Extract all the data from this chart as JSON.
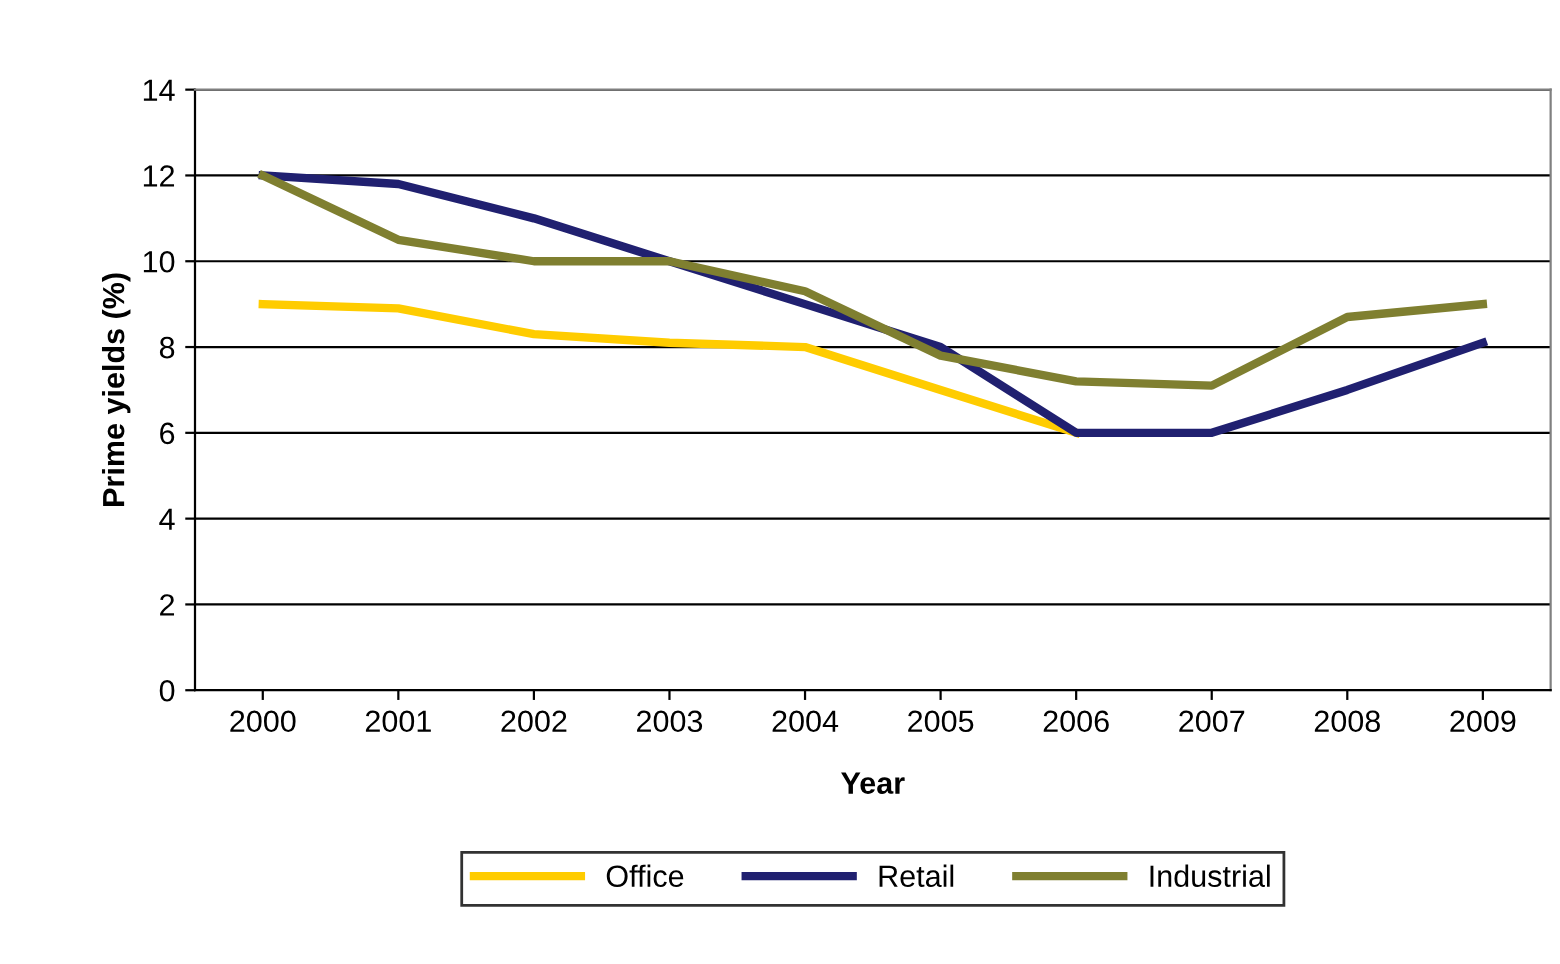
{
  "chart_data": {
    "type": "line",
    "xlabel": "Year",
    "ylabel": "Prime yields (%)",
    "categories": [
      "2000",
      "2001",
      "2002",
      "2003",
      "2004",
      "2005",
      "2006",
      "2007",
      "2008",
      "2009"
    ],
    "series": [
      {
        "name": "Office",
        "color": "#ffcc00",
        "values": [
          9.0,
          8.9,
          8.3,
          8.1,
          8.0,
          7.0,
          6.0,
          null,
          null,
          null
        ]
      },
      {
        "name": "Retail",
        "color": "#202070",
        "values": [
          12.0,
          11.8,
          11.0,
          10.0,
          9.0,
          8.0,
          6.0,
          6.0,
          7.0,
          8.1
        ]
      },
      {
        "name": "Industrial",
        "color": "#7f7f30",
        "values": [
          12.0,
          10.5,
          10.0,
          10.0,
          9.3,
          7.8,
          7.2,
          7.1,
          8.7,
          9.0
        ]
      }
    ],
    "ylim": [
      0,
      14
    ],
    "yticks": [
      0,
      2,
      4,
      6,
      8,
      10,
      12,
      14
    ],
    "grid": "y",
    "legend": "bottom",
    "marker": "none",
    "line_style": "solid"
  }
}
